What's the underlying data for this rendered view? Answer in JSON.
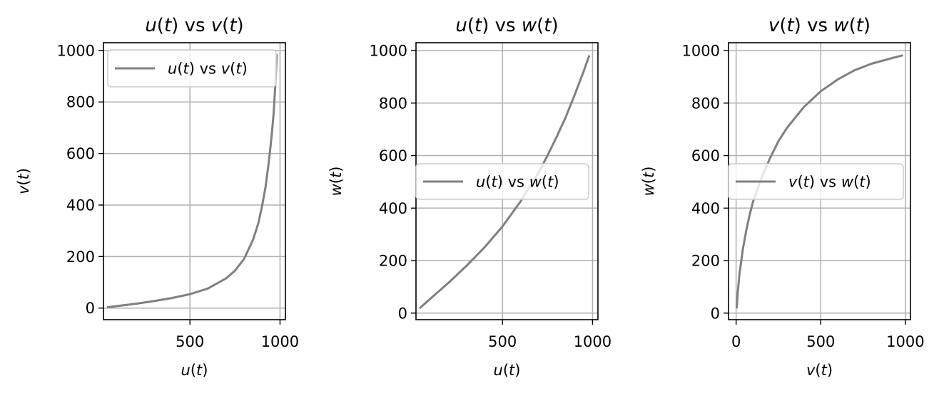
{
  "colors": {
    "line": "#808080",
    "grid": "#b0b0b0",
    "axes": "#000000",
    "legend_border": "#cccccc"
  },
  "chart_data": [
    {
      "type": "line",
      "title": "u(t) vs v(t)",
      "xlabel": "u(t)",
      "ylabel": "v(t)",
      "xlim": [
        20,
        1030
      ],
      "ylim": [
        -45,
        1030
      ],
      "xticks": [
        500,
        1000
      ],
      "yticks": [
        0,
        200,
        400,
        600,
        800,
        1000
      ],
      "xtick_labels": [
        "500",
        "1000"
      ],
      "ytick_labels": [
        "0",
        "200",
        "400",
        "600",
        "800",
        "1000"
      ],
      "grid": true,
      "legend_position": "upper left",
      "series": [
        {
          "name": "u(t) vs v(t)",
          "x": [
            40,
            100,
            200,
            300,
            400,
            500,
            600,
            700,
            750,
            800,
            850,
            880,
            900,
            920,
            940,
            955,
            965,
            975,
            982
          ],
          "y": [
            3,
            8,
            17,
            27,
            39,
            54,
            76,
            115,
            145,
            190,
            265,
            330,
            395,
            470,
            580,
            680,
            760,
            880,
            985
          ]
        }
      ]
    },
    {
      "type": "line",
      "title": "u(t) vs w(t)",
      "xlabel": "u(t)",
      "ylabel": "w(t)",
      "xlim": [
        20,
        1030
      ],
      "ylim": [
        -25,
        1030
      ],
      "xticks": [
        500,
        1000
      ],
      "yticks": [
        0,
        200,
        400,
        600,
        800,
        1000
      ],
      "xtick_labels": [
        "500",
        "1000"
      ],
      "ytick_labels": [
        "0",
        "200",
        "400",
        "600",
        "800",
        "1000"
      ],
      "grid": true,
      "legend_position": "center",
      "series": [
        {
          "name": "u(t) vs w(t)",
          "x": [
            40,
            100,
            200,
            300,
            400,
            500,
            600,
            700,
            750,
            800,
            850,
            900,
            950,
            982
          ],
          "y": [
            18,
            55,
            115,
            180,
            250,
            330,
            425,
            535,
            600,
            670,
            745,
            830,
            920,
            982
          ]
        }
      ]
    },
    {
      "type": "line",
      "title": "v(t) vs w(t)",
      "xlabel": "v(t)",
      "ylabel": "w(t)",
      "xlim": [
        -45,
        1030
      ],
      "ylim": [
        -25,
        1030
      ],
      "xticks": [
        0,
        500,
        1000
      ],
      "yticks": [
        0,
        200,
        400,
        600,
        800,
        1000
      ],
      "xtick_labels": [
        "0",
        "500",
        "1000"
      ],
      "ytick_labels": [
        "0",
        "200",
        "400",
        "600",
        "800",
        "1000"
      ],
      "grid": true,
      "legend_position": "center left",
      "series": [
        {
          "name": "v(t) vs w(t)",
          "x": [
            3,
            10,
            20,
            40,
            60,
            80,
            100,
            150,
            200,
            250,
            300,
            400,
            500,
            600,
            700,
            800,
            900,
            985
          ],
          "y": [
            18,
            80,
            150,
            245,
            315,
            375,
            425,
            515,
            590,
            655,
            705,
            785,
            845,
            890,
            925,
            950,
            968,
            982
          ]
        }
      ]
    }
  ]
}
